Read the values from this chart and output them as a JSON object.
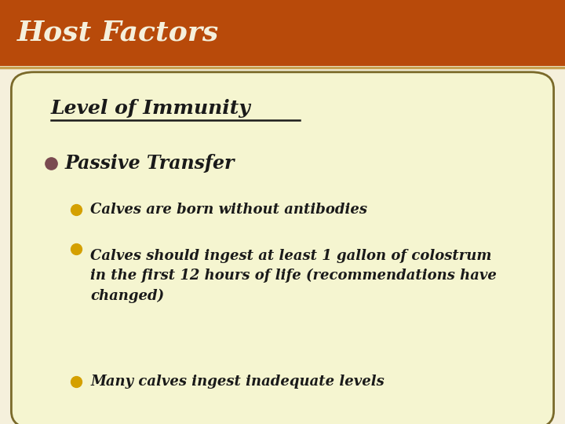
{
  "title": "Host Factors",
  "title_bg_color": "#B84A0A",
  "title_text_color": "#F5F0DC",
  "slide_bg_color": "#F5F0DC",
  "content_bg_color": "#F5F5D0",
  "content_border_color": "#7A6A2A",
  "header_line_color": "#C8A050",
  "subtitle": "Level of Immunity",
  "subtitle_color": "#1A1A1A",
  "bullet1_text": "Passive Transfer",
  "bullet1_color": "#1A1A1A",
  "bullet1_dot_color": "#7A4A50",
  "sub_bullet_dot_color": "#D4A000",
  "sub_bullets": [
    "Calves are born without antibodies",
    "Calves should ingest at least 1 gallon of colostrum\nin the first 12 hours of life (recommendations have\nchanged)",
    "Many calves ingest inadequate levels"
  ],
  "sub_bullet_color": "#1A1A1A",
  "title_bar_height": 0.155,
  "figsize": [
    7.2,
    5.4
  ],
  "dpi": 100
}
